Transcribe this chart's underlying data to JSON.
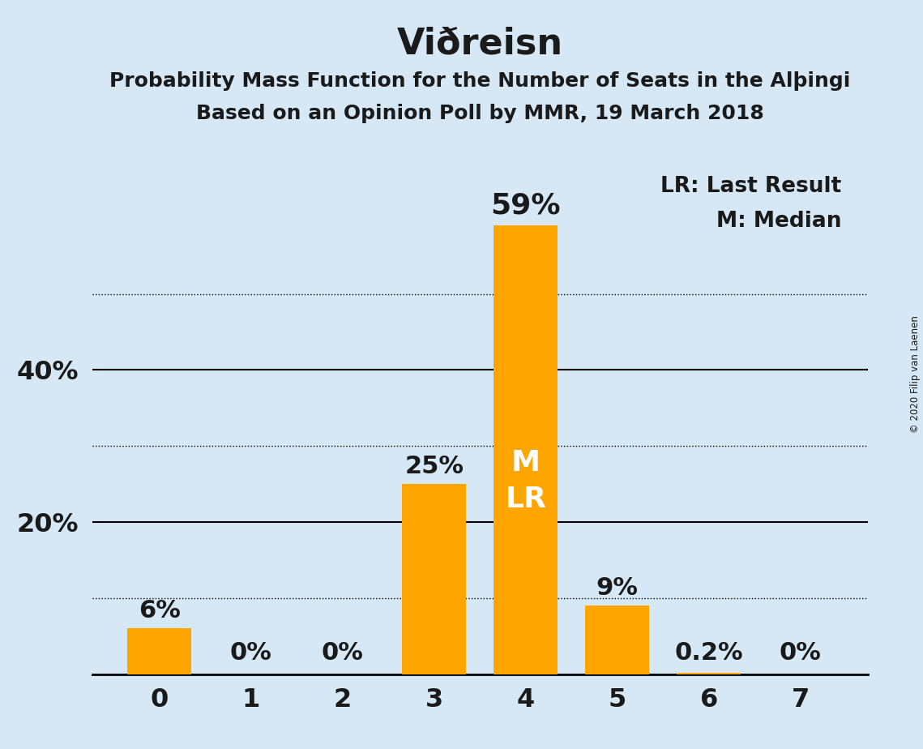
{
  "title": "Viðreisn",
  "subtitle1": "Probability Mass Function for the Number of Seats in the Alþingi",
  "subtitle2": "Based on an Opinion Poll by MMR, 19 March 2018",
  "copyright": "© 2020 Filip van Laenen",
  "legend_line1": "LR: Last Result",
  "legend_line2": "M: Median",
  "categories": [
    0,
    1,
    2,
    3,
    4,
    5,
    6,
    7
  ],
  "values": [
    6,
    0,
    0,
    25,
    59,
    9,
    0.2,
    0
  ],
  "bar_color": "#FFA500",
  "background_color": "#d6e8f5",
  "label_color_outside": "#1a1a1a",
  "label_color_inside": "#ffffff",
  "bar_labels": [
    "6%",
    "0%",
    "0%",
    "25%",
    "59%",
    "9%",
    "0.2%",
    "0%"
  ],
  "inside_label_bar_idx": 4,
  "inside_label_text": "M\nLR",
  "solid_gridlines": [
    20,
    40
  ],
  "dotted_gridlines": [
    10,
    30,
    50
  ],
  "ytick_positions": [
    20,
    40
  ],
  "ytick_labels": [
    "20%",
    "40%"
  ],
  "ylim": [
    0,
    67
  ],
  "title_fontsize": 32,
  "subtitle_fontsize": 18,
  "bar_label_fontsize_outside": 22,
  "bar_label_fontsize_inside": 26,
  "bar_label_59_fontsize": 26,
  "legend_fontsize": 19,
  "tick_fontsize": 23,
  "bar_width": 0.7
}
